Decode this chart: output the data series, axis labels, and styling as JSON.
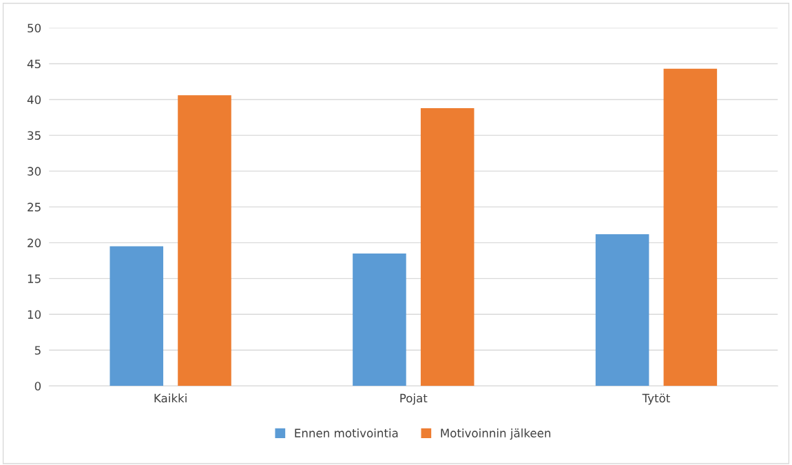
{
  "chart_data": {
    "type": "bar",
    "categories": [
      "Kaikki",
      "Pojat",
      "Tytöt"
    ],
    "series": [
      {
        "name": "Ennen motivointia",
        "color": "#5b9bd5",
        "values": [
          19.5,
          18.5,
          21.2
        ]
      },
      {
        "name": "Motivoinnin jälkeen",
        "color": "#ed7d31",
        "values": [
          40.6,
          38.8,
          44.3
        ]
      }
    ],
    "ylim": [
      0,
      50
    ],
    "yticks": [
      0,
      5,
      10,
      15,
      20,
      25,
      30,
      35,
      40,
      45,
      50
    ],
    "grid": "y",
    "legend": "bottom"
  }
}
